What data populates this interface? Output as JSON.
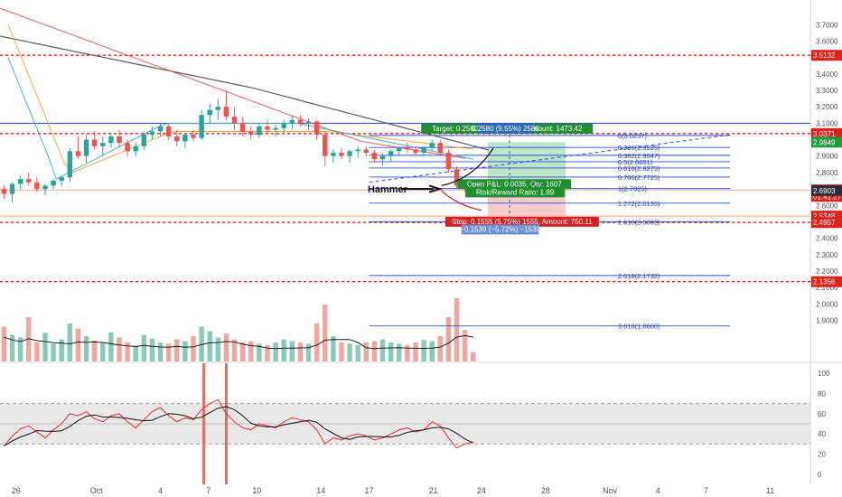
{
  "chart_data": {
    "type": "candlestick",
    "symbol_axis": {
      "min": 1.65,
      "max": 3.85,
      "ticks": [
        3.7,
        3.6,
        3.4,
        3.3,
        3.2,
        3.1,
        2.9,
        2.8,
        2.7,
        2.6,
        2.4,
        2.3,
        2.2,
        2.1,
        2.0,
        1.9
      ],
      "ticks_text": [
        "3.7000",
        "3.6000",
        "3.4000",
        "3.3000",
        "3.2000",
        "3.1000",
        "2.9000",
        "2.8000",
        "2.7000",
        "2.6000",
        "2.4000",
        "2.3000",
        "2.2000",
        "2.1000",
        "2.0000",
        "1.9000"
      ]
    },
    "x_axis": {
      "labels": [
        {
          "text": "26",
          "x": 0
        },
        {
          "text": "Oct",
          "x": 10
        },
        {
          "text": "4",
          "x": 18
        },
        {
          "text": "7",
          "x": 24
        },
        {
          "text": "10",
          "x": 30
        },
        {
          "text": "14",
          "x": 38
        },
        {
          "text": "17",
          "x": 44
        },
        {
          "text": "21",
          "x": 52
        },
        {
          "text": "24",
          "x": 58
        },
        {
          "text": "28",
          "x": 66
        },
        {
          "text": "Nov",
          "x": 74
        },
        {
          "text": "4",
          "x": 80
        },
        {
          "text": "7",
          "x": 86
        },
        {
          "text": "11",
          "x": 94
        }
      ],
      "min": -2,
      "max": 99
    },
    "candles": [
      [
        2.7,
        2.72,
        2.64,
        2.67
      ],
      [
        2.67,
        2.74,
        2.62,
        2.73
      ],
      [
        2.73,
        2.78,
        2.7,
        2.76
      ],
      [
        2.76,
        2.8,
        2.72,
        2.74
      ],
      [
        2.74,
        2.77,
        2.68,
        2.7
      ],
      [
        2.7,
        2.73,
        2.66,
        2.72
      ],
      [
        2.72,
        2.76,
        2.7,
        2.75
      ],
      [
        2.75,
        2.78,
        2.72,
        2.77
      ],
      [
        2.77,
        2.95,
        2.74,
        2.93
      ],
      [
        2.93,
        3.02,
        2.88,
        2.9
      ],
      [
        2.9,
        3.03,
        2.86,
        3.0
      ],
      [
        3.0,
        3.05,
        2.94,
        2.96
      ],
      [
        2.96,
        3.02,
        2.9,
        2.98
      ],
      [
        2.98,
        3.04,
        2.95,
        3.02
      ],
      [
        3.02,
        3.06,
        2.96,
        2.98
      ],
      [
        2.98,
        3.0,
        2.9,
        2.93
      ],
      [
        2.93,
        2.98,
        2.9,
        2.96
      ],
      [
        2.96,
        3.05,
        2.94,
        3.03
      ],
      [
        3.03,
        3.08,
        3.0,
        3.05
      ],
      [
        3.05,
        3.1,
        3.02,
        3.08
      ],
      [
        3.08,
        3.1,
        3.0,
        3.02
      ],
      [
        3.02,
        3.06,
        2.96,
        2.99
      ],
      [
        2.99,
        3.04,
        2.95,
        3.03
      ],
      [
        3.03,
        3.06,
        2.99,
        3.01
      ],
      [
        3.01,
        3.18,
        3.0,
        3.15
      ],
      [
        3.15,
        3.22,
        3.1,
        3.18
      ],
      [
        3.18,
        3.25,
        3.12,
        3.2
      ],
      [
        3.2,
        3.3,
        3.12,
        3.14
      ],
      [
        3.14,
        3.2,
        3.06,
        3.1
      ],
      [
        3.1,
        3.14,
        3.02,
        3.05
      ],
      [
        3.05,
        3.08,
        3.0,
        3.03
      ],
      [
        3.03,
        3.1,
        3.01,
        3.08
      ],
      [
        3.08,
        3.12,
        3.04,
        3.06
      ],
      [
        3.06,
        3.09,
        3.02,
        3.07
      ],
      [
        3.07,
        3.12,
        3.04,
        3.1
      ],
      [
        3.1,
        3.14,
        3.06,
        3.12
      ],
      [
        3.12,
        3.15,
        3.08,
        3.1
      ],
      [
        3.1,
        3.13,
        3.06,
        3.11
      ],
      [
        3.11,
        3.12,
        3.0,
        3.03
      ],
      [
        3.03,
        3.05,
        2.84,
        2.9
      ],
      [
        2.9,
        2.94,
        2.86,
        2.92
      ],
      [
        2.92,
        2.95,
        2.88,
        2.9
      ],
      [
        2.9,
        2.94,
        2.86,
        2.93
      ],
      [
        2.93,
        2.96,
        2.89,
        2.94
      ],
      [
        2.94,
        2.96,
        2.9,
        2.92
      ],
      [
        2.92,
        2.94,
        2.86,
        2.88
      ],
      [
        2.88,
        2.92,
        2.84,
        2.9
      ],
      [
        2.9,
        2.94,
        2.87,
        2.93
      ],
      [
        2.93,
        2.96,
        2.9,
        2.95
      ],
      [
        2.95,
        2.98,
        2.92,
        2.94
      ],
      [
        2.94,
        2.96,
        2.9,
        2.92
      ],
      [
        2.92,
        2.96,
        2.9,
        2.95
      ],
      [
        2.95,
        3.0,
        2.93,
        2.98
      ],
      [
        2.98,
        3.0,
        2.9,
        2.92
      ],
      [
        2.92,
        2.94,
        2.8,
        2.82
      ],
      [
        2.82,
        2.84,
        2.7,
        2.72
      ],
      [
        2.72,
        2.74,
        2.68,
        2.7
      ],
      [
        2.7,
        2.71,
        2.67,
        2.69
      ]
    ],
    "horizontal_levels": [
      {
        "value": 3.5132,
        "label": "3.5132",
        "style": "dashed",
        "color": "#e0201a"
      },
      {
        "value": 3.1,
        "style": "solid",
        "color": "#1d3fcf"
      },
      {
        "value": 3.0371,
        "label": "3.0371",
        "style": "dashed",
        "color": "#e0201a"
      },
      {
        "value": 2.6938,
        "label": "2.6938",
        "style": "solid",
        "color": "#f6a58c"
      },
      {
        "value": 2.5348,
        "label": "2.5348",
        "style": "solid",
        "color": "#f6a58c"
      },
      {
        "value": 2.4957,
        "label": "2.4957",
        "style": "dashed",
        "color": "#e0201a"
      },
      {
        "value": 2.1356,
        "label": "2.1356",
        "style": "dashed",
        "color": "#e0201a"
      }
    ],
    "price_labels": [
      {
        "value": 3.5132,
        "text": "3.5132",
        "color": "#e0201a"
      },
      {
        "value": 3.0371,
        "text": "3.0371",
        "color": "#e0201a"
      },
      {
        "value": 2.9849,
        "text": "2.9849",
        "color": "#1f9d3a"
      },
      {
        "value": 2.6938,
        "text": "2.6938",
        "color": "#e0201a"
      },
      {
        "value": 2.655,
        "text": "01:41:27",
        "color": "#e0201a"
      },
      {
        "value": 2.6903,
        "text": "2.6903",
        "color": "#2a2e39"
      },
      {
        "value": 2.5348,
        "text": "2.5348",
        "color": "#e0201a"
      },
      {
        "value": 2.4957,
        "text": "2.4957",
        "color": "#e0201a"
      },
      {
        "value": 2.1356,
        "text": "2.1356",
        "color": "#e0201a"
      }
    ],
    "fib_levels": [
      {
        "value": 3.0257,
        "text": "0(3.0257)"
      },
      {
        "value": 2.9525,
        "text": "0.236(2.9525)"
      },
      {
        "value": 2.9047,
        "text": "0.382(2.9047)"
      },
      {
        "value": 2.8661,
        "text": "0.5(2.8661)"
      },
      {
        "value": 2.8275,
        "text": "0.618(2.8275)"
      },
      {
        "value": 2.7725,
        "text": "0.786(2.7725)"
      },
      {
        "value": 2.7025,
        "text": "1(2.7025)"
      },
      {
        "value": 2.6135,
        "text": "1.272(2.6135)"
      },
      {
        "value": 2.5002,
        "text": "1.618(2.5002)"
      },
      {
        "value": 2.1732,
        "text": "2.618(2.1732)"
      },
      {
        "value": 1.866,
        "text": "3.618(1.8660)"
      }
    ],
    "position": {
      "target_text": "Target: 0.2580 (9.55%) 2580, Amount: 1473.42",
      "target_box_text": "0.2580 (9.55%) 2580",
      "open_pnl_text": "Open P&L: 0.0035, Qty: 1607",
      "rr_text": "Risk/Reward Ratio: 1.89",
      "stop_text": "Stop: 0.1555 (5.75%) 1555, Amount: 750.11",
      "loss_box_text": "−0.1539 (−5.72%) −1539"
    },
    "annotation": "Hammer",
    "volume": [
      0.55,
      0.42,
      0.38,
      0.7,
      0.3,
      0.45,
      0.28,
      0.35,
      0.6,
      0.52,
      0.4,
      0.33,
      0.29,
      0.46,
      0.38,
      0.3,
      0.25,
      0.42,
      0.36,
      0.3,
      0.28,
      0.35,
      0.32,
      0.4,
      0.55,
      0.48,
      0.38,
      0.44,
      0.35,
      0.3,
      0.32,
      0.28,
      0.26,
      0.3,
      0.35,
      0.32,
      0.3,
      0.28,
      0.6,
      0.9,
      0.4,
      0.3,
      0.28,
      0.26,
      0.3,
      0.32,
      0.35,
      0.3,
      0.28,
      0.26,
      0.3,
      0.34,
      0.32,
      0.4,
      0.7,
      1.0,
      0.5,
      0.15
    ],
    "rsi_axis": {
      "min": -10,
      "max": 110,
      "ticks": [
        100,
        80,
        60,
        40,
        20,
        0
      ],
      "band": [
        30,
        70
      ]
    },
    "rsi": [
      28,
      38,
      45,
      48,
      42,
      36,
      44,
      50,
      60,
      58,
      62,
      55,
      52,
      58,
      60,
      52,
      46,
      54,
      62,
      66,
      58,
      52,
      56,
      54,
      64,
      70,
      74,
      60,
      52,
      46,
      44,
      50,
      48,
      46,
      52,
      56,
      54,
      52,
      44,
      30,
      36,
      34,
      38,
      40,
      38,
      34,
      36,
      40,
      44,
      46,
      42,
      44,
      52,
      48,
      36,
      26,
      30,
      32
    ]
  }
}
